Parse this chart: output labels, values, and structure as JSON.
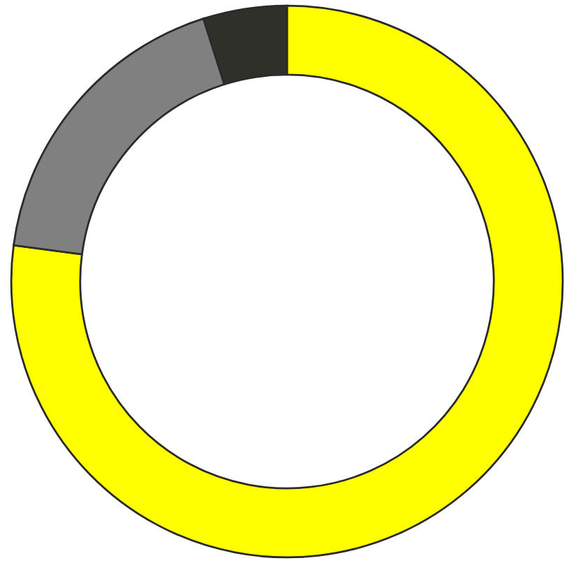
{
  "chart_data": {
    "type": "donut",
    "categories": [
      null,
      null,
      null
    ],
    "values": [
      77.1,
      18.0,
      4.9
    ],
    "colors": [
      "#ffff00",
      "#808080",
      "#2f302a"
    ]
  }
}
